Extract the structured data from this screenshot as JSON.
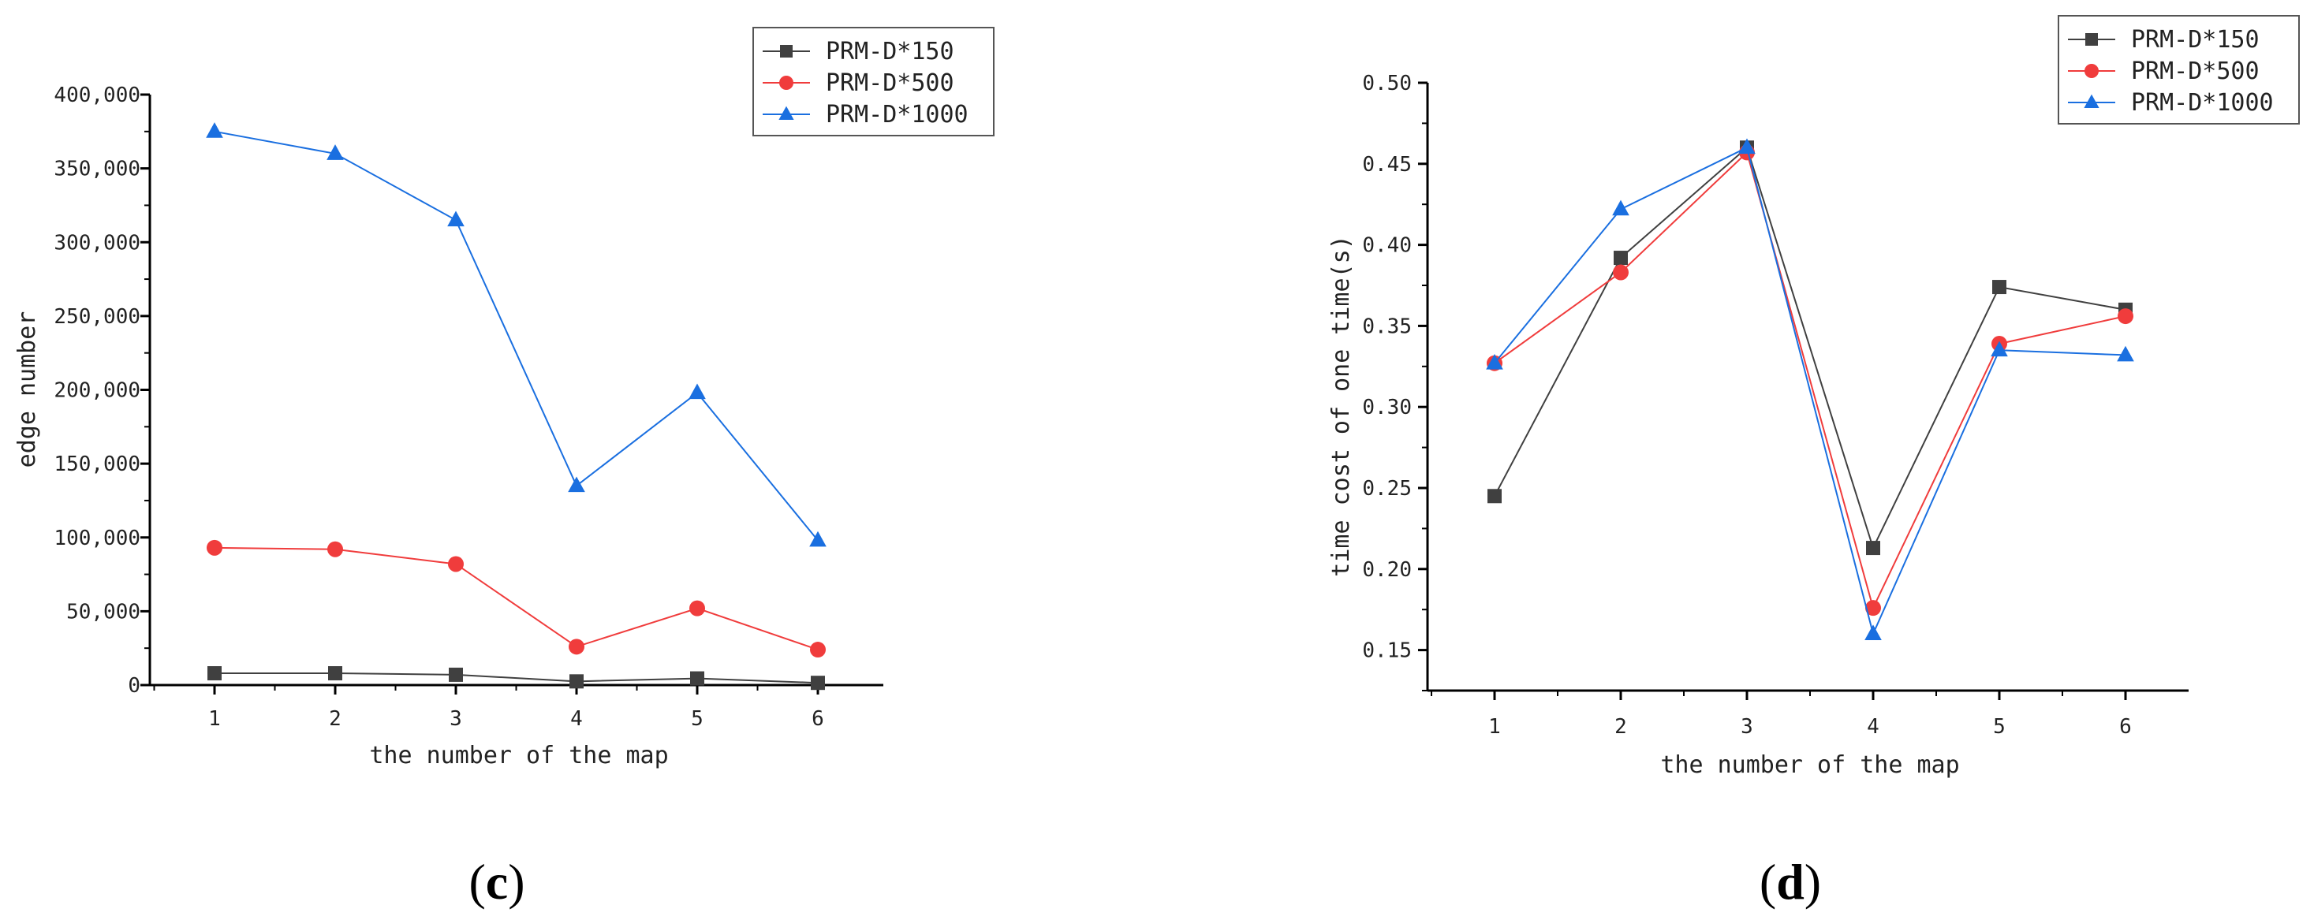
{
  "colors": {
    "series": [
      "#404040",
      "#f03c3c",
      "#1a6fe0"
    ],
    "axis": "#000000"
  },
  "chart_data": [
    {
      "type": "line",
      "panel_label": "c",
      "categories": [
        "1",
        "2",
        "3",
        "4",
        "5",
        "6"
      ],
      "series": [
        {
          "name": "PRM-D*150",
          "marker": "square",
          "values": [
            8000,
            8000,
            7000,
            2500,
            4500,
            1500
          ]
        },
        {
          "name": "PRM-D*500",
          "marker": "circle",
          "values": [
            93000,
            92000,
            82000,
            26000,
            52000,
            24000
          ]
        },
        {
          "name": "PRM-D*1000",
          "marker": "triangle",
          "values": [
            375000,
            360000,
            315000,
            135000,
            198000,
            98000
          ]
        }
      ],
      "title": "",
      "xlabel": "the number of the map",
      "ylabel": "edge number",
      "ylim": [
        0,
        400000
      ],
      "yticks": [
        0,
        50000,
        100000,
        150000,
        200000,
        250000,
        300000,
        350000,
        400000
      ],
      "ytick_labels": [
        "0",
        "50,000",
        "100,000",
        "150,000",
        "200,000",
        "250,000",
        "300,000",
        "350,000",
        "400,000"
      ],
      "legend_position": "top-right",
      "grid": false
    },
    {
      "type": "line",
      "panel_label": "d",
      "categories": [
        "1",
        "2",
        "3",
        "4",
        "5",
        "6"
      ],
      "series": [
        {
          "name": "PRM-D*150",
          "marker": "square",
          "values": [
            0.245,
            0.392,
            0.46,
            0.213,
            0.374,
            0.36
          ]
        },
        {
          "name": "PRM-D*500",
          "marker": "circle",
          "values": [
            0.327,
            0.383,
            0.457,
            0.176,
            0.339,
            0.356
          ]
        },
        {
          "name": "PRM-D*1000",
          "marker": "triangle",
          "values": [
            0.327,
            0.422,
            0.46,
            0.16,
            0.335,
            0.332
          ]
        }
      ],
      "title": "",
      "xlabel": "the number of the map",
      "ylabel": "time cost of one time(s)",
      "ylim": [
        0.125,
        0.5
      ],
      "yticks": [
        0.15,
        0.2,
        0.25,
        0.3,
        0.35,
        0.4,
        0.45,
        0.5
      ],
      "ytick_labels": [
        "0.15",
        "0.20",
        "0.25",
        "0.30",
        "0.35",
        "0.40",
        "0.45",
        "0.50"
      ],
      "legend_position": "top-right",
      "grid": false
    }
  ]
}
